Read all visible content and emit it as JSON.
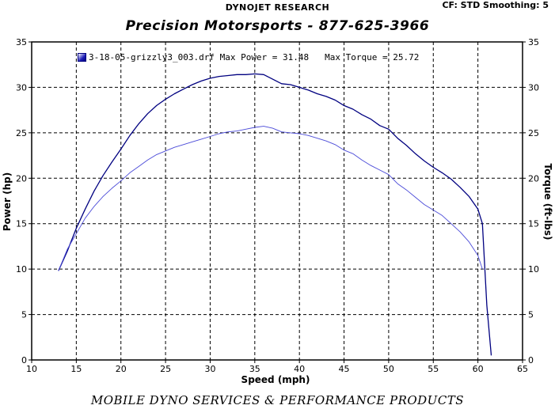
{
  "header": {
    "company": "DYNOJET RESEARCH",
    "settings": "CF: STD  Smoothing: 5"
  },
  "title": "Precision Motorsports - 877-625-3966",
  "footer": "MOBILE DYNO SERVICES & PERFORMANCE PRODUCTS",
  "legend": {
    "file": "3-18-05-grizzly3_003.drf",
    "max_power_label": "Max Power = 31.48",
    "max_torque_label": "Max Torque = 25.72"
  },
  "colors": {
    "power_line": "#000080",
    "torque_line": "#4a4ad8",
    "grid": "#000000",
    "frame": "#000000"
  },
  "chart_data": {
    "type": "line",
    "x_label": "Speed (mph)",
    "y_label_left": "Power (hp)",
    "y_label_right": "Torque (ft-lbs)",
    "xlim": [
      10,
      65
    ],
    "ylim": [
      0,
      35
    ],
    "x_ticks": [
      10,
      15,
      20,
      25,
      30,
      35,
      40,
      45,
      50,
      55,
      60,
      65
    ],
    "y_ticks": [
      0,
      5,
      10,
      15,
      20,
      25,
      30,
      35
    ],
    "grid": true,
    "grid_style": "dashed",
    "legend_position": "top-left",
    "series": [
      {
        "name": "Power",
        "axis": "left",
        "points": [
          [
            13,
            9.8
          ],
          [
            14,
            12.0
          ],
          [
            15,
            14.5
          ],
          [
            16,
            16.6
          ],
          [
            17,
            18.6
          ],
          [
            18,
            20.3
          ],
          [
            19,
            21.8
          ],
          [
            20,
            23.2
          ],
          [
            21,
            24.7
          ],
          [
            22,
            26.0
          ],
          [
            23,
            27.1
          ],
          [
            24,
            28.0
          ],
          [
            25,
            28.7
          ],
          [
            26,
            29.3
          ],
          [
            27,
            29.8
          ],
          [
            28,
            30.3
          ],
          [
            29,
            30.7
          ],
          [
            30,
            31.0
          ],
          [
            31,
            31.2
          ],
          [
            32,
            31.3
          ],
          [
            33,
            31.4
          ],
          [
            34,
            31.4
          ],
          [
            35,
            31.48
          ],
          [
            36,
            31.4
          ],
          [
            37,
            30.9
          ],
          [
            38,
            30.4
          ],
          [
            39,
            30.3
          ],
          [
            40,
            30.0
          ],
          [
            41,
            29.7
          ],
          [
            42,
            29.3
          ],
          [
            43,
            29.0
          ],
          [
            44,
            28.6
          ],
          [
            45,
            28.0
          ],
          [
            46,
            27.6
          ],
          [
            47,
            27.0
          ],
          [
            48,
            26.5
          ],
          [
            49,
            25.8
          ],
          [
            50,
            25.4
          ],
          [
            51,
            24.4
          ],
          [
            52,
            23.6
          ],
          [
            53,
            22.7
          ],
          [
            54,
            21.9
          ],
          [
            55,
            21.2
          ],
          [
            56,
            20.6
          ],
          [
            57,
            19.9
          ],
          [
            58,
            19.0
          ],
          [
            59,
            18.0
          ],
          [
            60,
            16.6
          ],
          [
            60.5,
            15.0
          ],
          [
            61,
            6.0
          ],
          [
            61.5,
            0.5
          ]
        ]
      },
      {
        "name": "Torque",
        "axis": "right",
        "points": [
          [
            13,
            9.8
          ],
          [
            14,
            12.2
          ],
          [
            15,
            13.9
          ],
          [
            16,
            15.6
          ],
          [
            17,
            16.9
          ],
          [
            18,
            18.0
          ],
          [
            19,
            18.9
          ],
          [
            20,
            19.7
          ],
          [
            21,
            20.6
          ],
          [
            22,
            21.3
          ],
          [
            23,
            22.0
          ],
          [
            24,
            22.6
          ],
          [
            25,
            23.0
          ],
          [
            26,
            23.4
          ],
          [
            27,
            23.7
          ],
          [
            28,
            24.0
          ],
          [
            29,
            24.3
          ],
          [
            30,
            24.6
          ],
          [
            31,
            24.9
          ],
          [
            32,
            25.1
          ],
          [
            33,
            25.2
          ],
          [
            34,
            25.4
          ],
          [
            35,
            25.6
          ],
          [
            36,
            25.72
          ],
          [
            37,
            25.5
          ],
          [
            38,
            25.1
          ],
          [
            39,
            25.0
          ],
          [
            40,
            24.9
          ],
          [
            41,
            24.7
          ],
          [
            42,
            24.4
          ],
          [
            43,
            24.1
          ],
          [
            44,
            23.7
          ],
          [
            45,
            23.1
          ],
          [
            46,
            22.7
          ],
          [
            47,
            22.0
          ],
          [
            48,
            21.4
          ],
          [
            49,
            20.9
          ],
          [
            50,
            20.4
          ],
          [
            51,
            19.4
          ],
          [
            52,
            18.7
          ],
          [
            53,
            17.9
          ],
          [
            54,
            17.1
          ],
          [
            55,
            16.5
          ],
          [
            56,
            15.9
          ],
          [
            57,
            15.0
          ],
          [
            58,
            14.1
          ],
          [
            59,
            13.0
          ],
          [
            60,
            11.5
          ],
          [
            60.5,
            10.0
          ]
        ]
      }
    ]
  }
}
